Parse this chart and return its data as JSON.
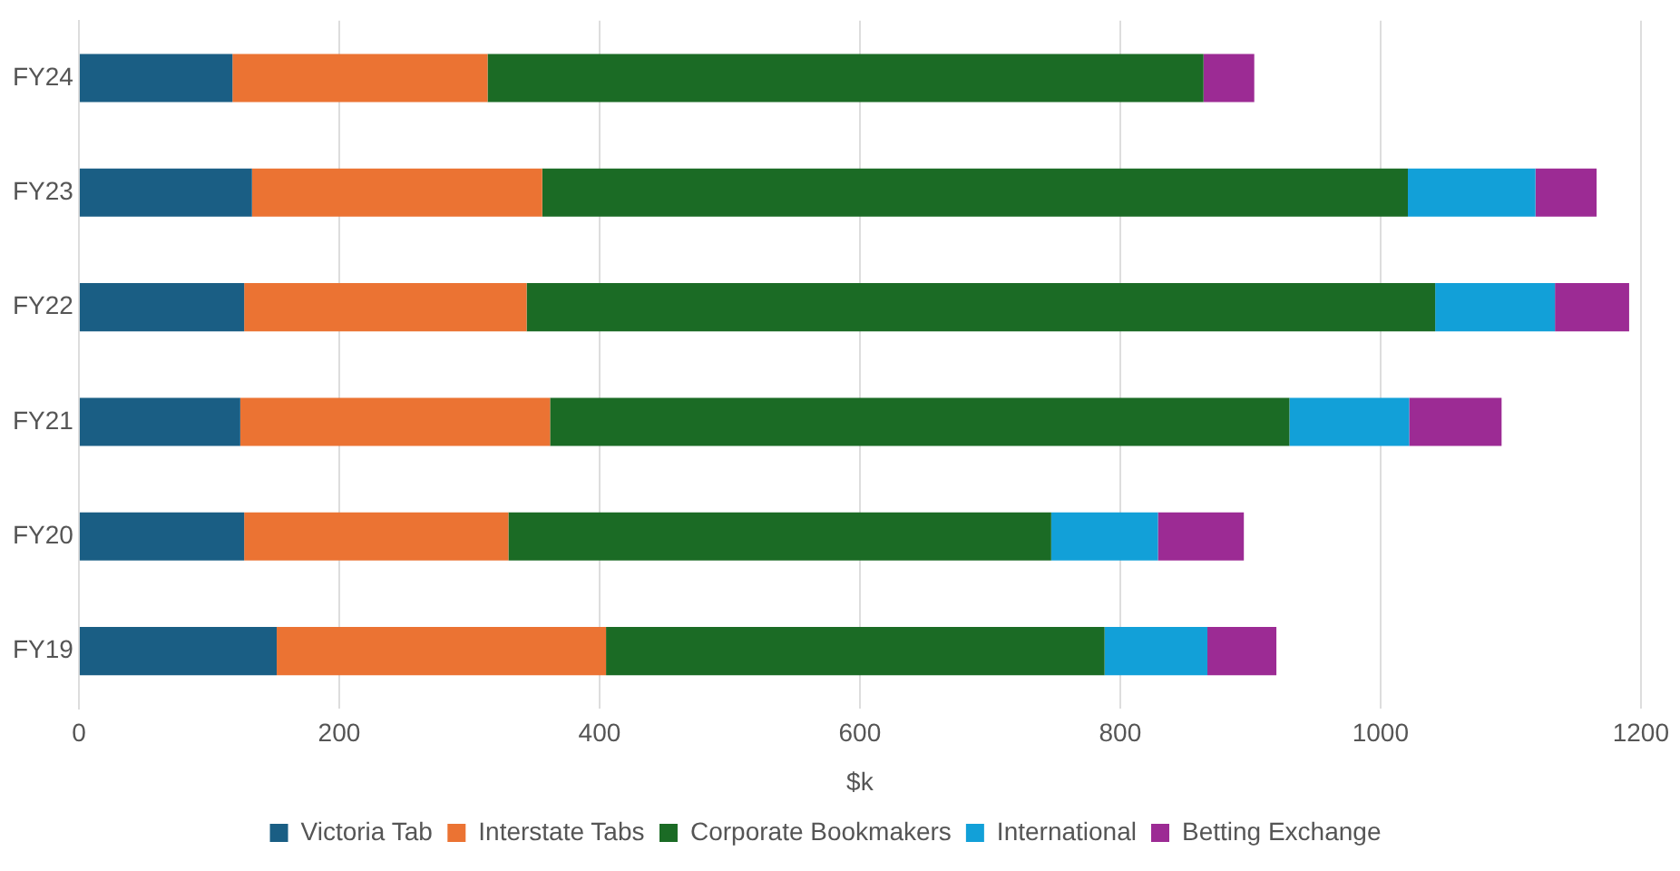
{
  "chart_data": {
    "type": "bar",
    "orientation": "horizontal",
    "stacked": true,
    "categories": [
      "FY24",
      "FY23",
      "FY22",
      "FY21",
      "FY20",
      "FY19"
    ],
    "series": [
      {
        "name": "Victoria Tab",
        "color": "#1a5e84",
        "values": [
          118,
          133,
          127,
          124,
          127,
          152
        ]
      },
      {
        "name": "Interstate Tabs",
        "color": "#eb7333",
        "values": [
          196,
          223,
          217,
          238,
          203,
          253
        ]
      },
      {
        "name": "Corporate Bookmakers",
        "color": "#1b6b25",
        "values": [
          550,
          665,
          698,
          568,
          417,
          383
        ]
      },
      {
        "name": "International",
        "color": "#12a0d8",
        "values": [
          0,
          98,
          92,
          92,
          82,
          79
        ]
      },
      {
        "name": "Betting Exchange",
        "color": "#9c2b94",
        "values": [
          39,
          47,
          57,
          71,
          66,
          53
        ]
      }
    ],
    "xlabel": "$k",
    "xlim": [
      0,
      1200
    ],
    "xticks": [
      0,
      200,
      400,
      600,
      800,
      1000,
      1200
    ],
    "grid": "x",
    "legend": "bottom"
  }
}
